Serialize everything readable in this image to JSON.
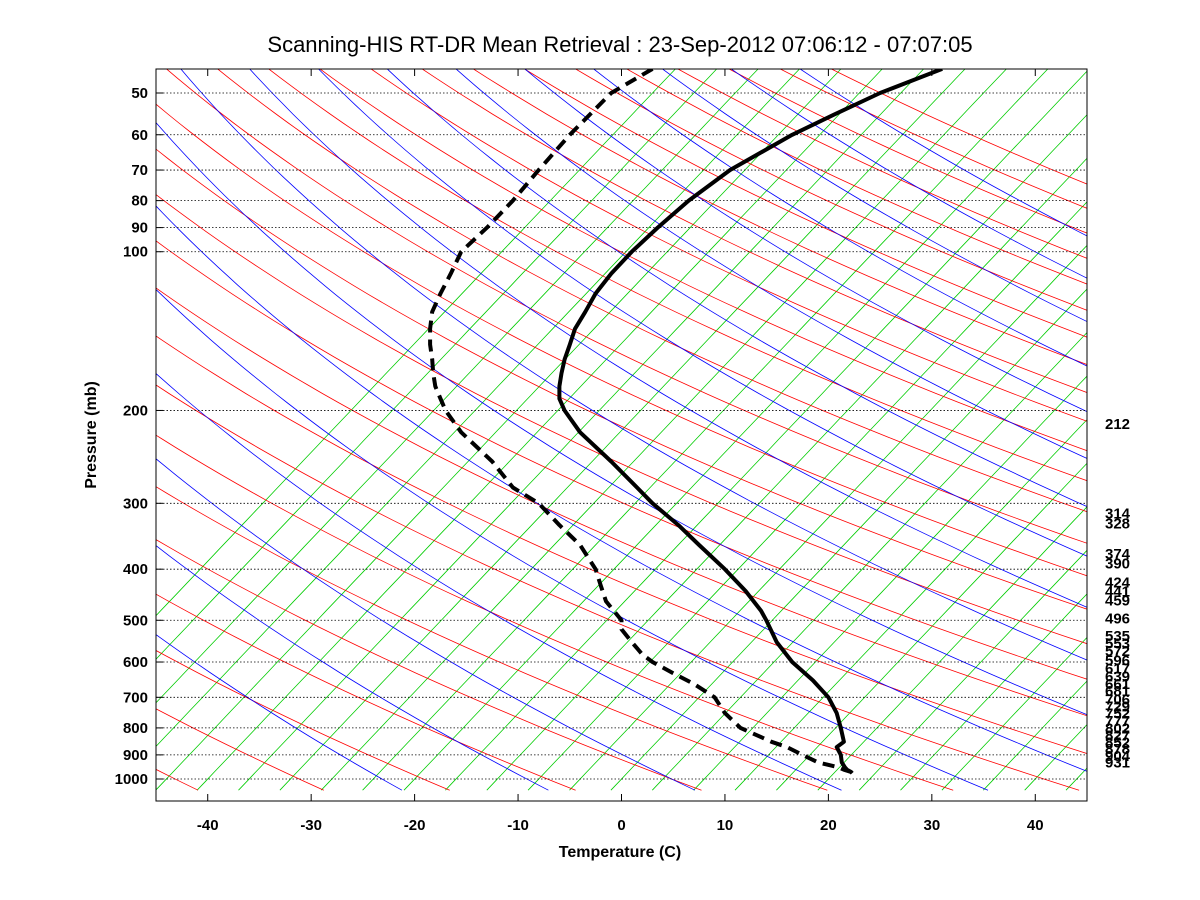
{
  "chart_data": {
    "type": "line",
    "title": "Scanning-HIS RT-DR Mean Retrieval : 23-Sep-2012 07:06:12 - 07:07:05",
    "xlabel": "Temperature (C)",
    "ylabel": "Pressure (mb)",
    "xlim": [
      -45,
      45
    ],
    "ylim": [
      1050,
      45
    ],
    "y_scale": "log",
    "grid": "horizontal dotted at pressure ticks",
    "x_ticks": [
      -40,
      -30,
      -20,
      -10,
      0,
      10,
      20,
      30,
      40
    ],
    "y_ticks": [
      1000,
      900,
      800,
      700,
      600,
      500,
      400,
      300,
      200,
      100,
      90,
      80,
      70,
      60,
      50
    ],
    "background_lines": {
      "dry_adiabats_color": "#ff0000",
      "moist_adiabats_color": "#0000ff",
      "mixing_ratio_color": "#00cc00"
    },
    "right_labels": [
      "212",
      "314",
      "328",
      "374",
      "390",
      "424",
      "441",
      "459",
      "496",
      "535",
      "553",
      "572",
      "596",
      "617",
      "639",
      "661",
      "681",
      "706",
      "729",
      "752",
      "777",
      "802",
      "827",
      "852",
      "878",
      "904",
      "931"
    ],
    "right_label_pressures": [
      212,
      314,
      328,
      374,
      390,
      424,
      441,
      459,
      496,
      535,
      553,
      572,
      596,
      617,
      639,
      661,
      681,
      706,
      729,
      752,
      777,
      802,
      827,
      852,
      878,
      904,
      931
    ],
    "series": [
      {
        "style": "solid",
        "color": "#000000",
        "pressure": [
          45,
          50,
          55,
          60,
          70,
          80,
          90,
          100,
          110,
          120,
          130,
          140,
          150,
          160,
          170,
          180,
          190,
          200,
          220,
          250,
          280,
          300,
          330,
          360,
          400,
          440,
          480,
          500,
          550,
          600,
          650,
          700,
          750,
          800,
          850,
          870,
          900,
          930,
          950,
          960,
          970,
          975
        ],
        "temperature": [
          31,
          25,
          20.5,
          16.5,
          10.5,
          6.5,
          3.5,
          1,
          -1,
          -2.5,
          -3.5,
          -4.5,
          -5,
          -5.5,
          -5.8,
          -6,
          -6,
          -5.5,
          -4,
          -1,
          1.5,
          3,
          5.5,
          7.5,
          10,
          12,
          13.5,
          14,
          15,
          16.5,
          18.5,
          20,
          20.8,
          21.2,
          21.5,
          20.8,
          21.2,
          21.3,
          21.6,
          21.8,
          22.2,
          22.3
        ]
      },
      {
        "style": "dashed",
        "color": "#000000",
        "pressure": [
          45,
          50,
          60,
          70,
          80,
          90,
          100,
          110,
          120,
          130,
          140,
          150,
          160,
          170,
          180,
          190,
          200,
          220,
          250,
          280,
          300,
          330,
          360,
          400,
          430,
          460,
          500,
          520,
          550,
          580,
          600,
          630,
          660,
          700,
          750,
          800,
          850,
          870,
          900,
          930,
          950,
          960,
          970
        ],
        "temperature": [
          3,
          -1,
          -5,
          -8,
          -10.5,
          -13,
          -15.5,
          -16.5,
          -17.5,
          -18.3,
          -18.5,
          -18.5,
          -18.3,
          -18.2,
          -18,
          -17.5,
          -17,
          -15.5,
          -12.5,
          -10.5,
          -8,
          -6,
          -4,
          -2.5,
          -2,
          -1.5,
          0,
          0,
          1,
          2,
          3,
          5,
          7,
          9,
          10,
          11.5,
          14.5,
          16,
          17.5,
          19,
          21,
          21.5,
          22.2
        ]
      }
    ]
  }
}
